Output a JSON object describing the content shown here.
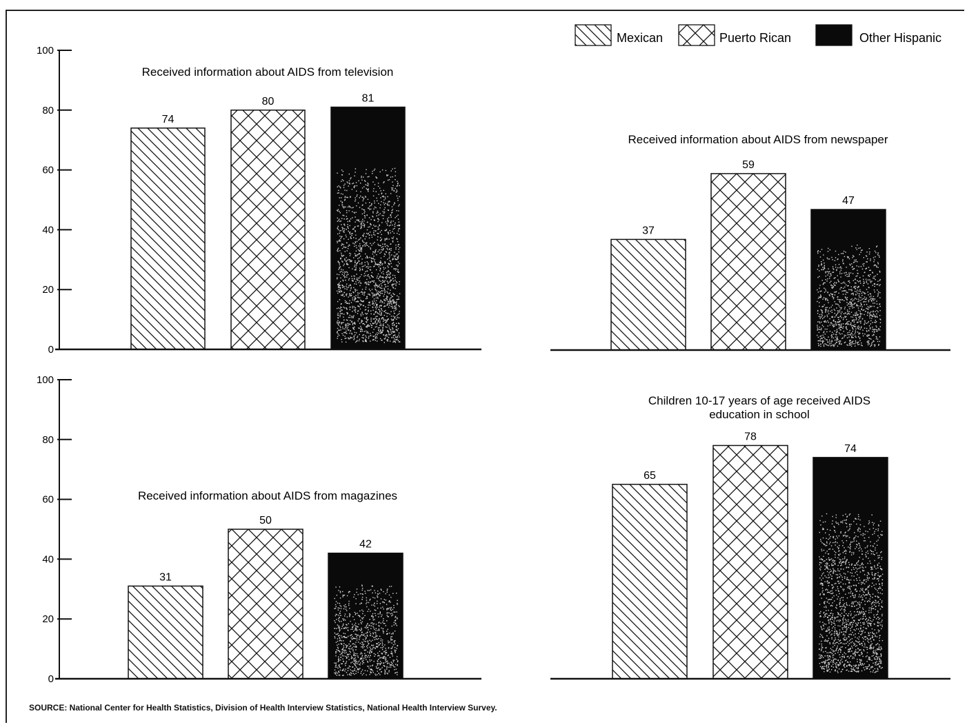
{
  "chart_data": [
    {
      "type": "bar",
      "title": "Received information about AIDS from television",
      "categories": [
        "Mexican",
        "Puerto Rican",
        "Other Hispanic"
      ],
      "values": [
        74,
        80,
        81
      ],
      "ylim": [
        0,
        100
      ],
      "yticks": [
        "0",
        "20",
        "40",
        "60",
        "80",
        "100"
      ]
    },
    {
      "type": "bar",
      "title": "Received information about AIDS from newspaper",
      "categories": [
        "Mexican",
        "Puerto Rican",
        "Other Hispanic"
      ],
      "values": [
        37,
        59,
        47
      ],
      "ylim": [
        0,
        100
      ]
    },
    {
      "type": "bar",
      "title": "Received information about AIDS from magazines",
      "categories": [
        "Mexican",
        "Puerto Rican",
        "Other Hispanic"
      ],
      "values": [
        31,
        50,
        42
      ],
      "ylim": [
        0,
        100
      ],
      "yticks": [
        "0",
        "20",
        "40",
        "60",
        "80",
        "100"
      ]
    },
    {
      "type": "bar",
      "title": "Children 10-17 years of age received AIDS education in school",
      "categories": [
        "Mexican",
        "Puerto Rican",
        "Other Hispanic"
      ],
      "values": [
        65,
        78,
        74
      ],
      "ylim": [
        0,
        100
      ]
    }
  ],
  "legend": {
    "items": [
      {
        "label": "Mexican",
        "pattern": "diagonal-hatch"
      },
      {
        "label": "Puerto Rican",
        "pattern": "cross-hatch"
      },
      {
        "label": "Other Hispanic",
        "pattern": "solid-black"
      }
    ],
    "position": "top-right"
  },
  "source": "SOURCE: National Center for Health Statistics, Division of Health Interview Statistics, National Health Interview Survey.",
  "colors": {
    "ink": "#111111",
    "bar_solid": "#0a0a0a",
    "background": "#ffffff"
  }
}
